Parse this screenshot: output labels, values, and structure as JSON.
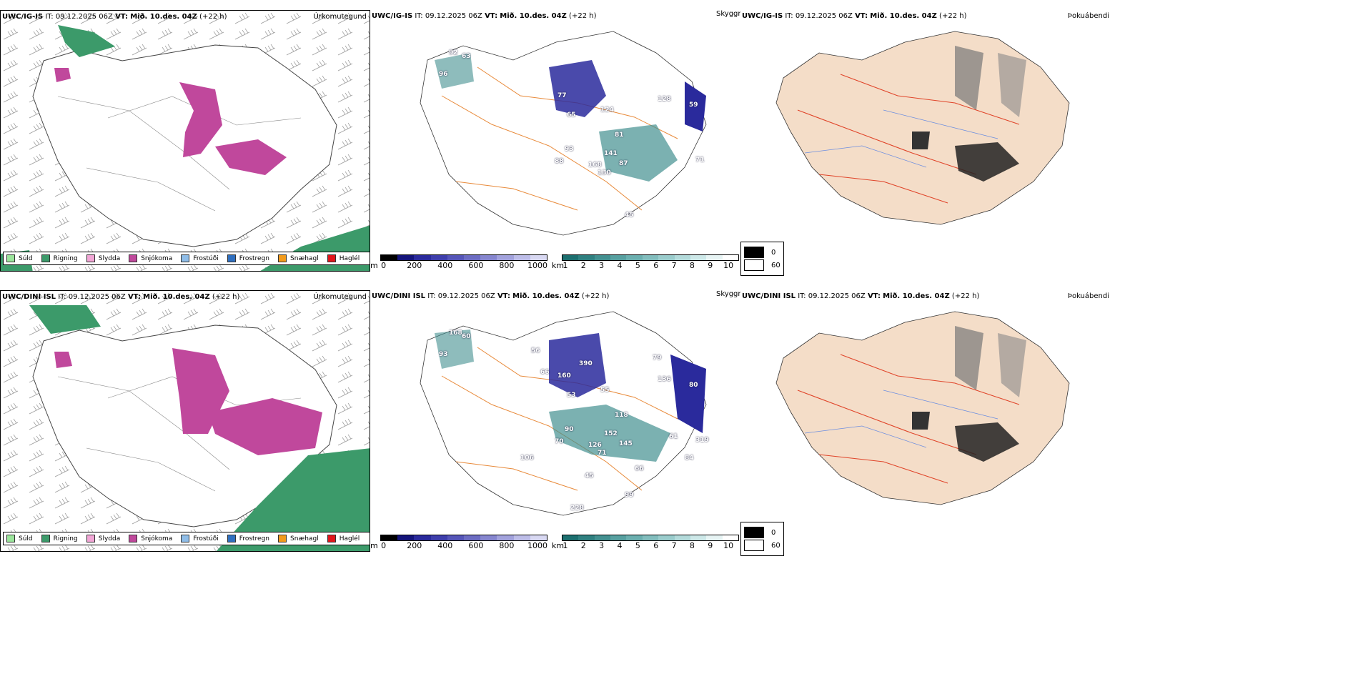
{
  "panels_top": {
    "model": "UWC/IG-IS",
    "it_label": "IT:",
    "it_value": "09.12.2025 06Z",
    "vt_label": "VT:",
    "vt_value": "Mið. 10.des. 04Z",
    "lead": "(+22 h)"
  },
  "panels_bottom": {
    "model": "UWC/DINI ISL",
    "it_label": "IT:",
    "it_value": "09.12.2025 06Z",
    "vt_label": "VT:",
    "vt_value": "Mið. 10.des. 04Z",
    "lead": "(+22 h)"
  },
  "titles": {
    "precip": "Úrkomutegund",
    "visibility": "Skyggni",
    "fog": "Þokuábendi"
  },
  "precip_legend": [
    {
      "label": "Súld",
      "color": "#9be59b"
    },
    {
      "label": "Rigning",
      "color": "#3c9a6a"
    },
    {
      "label": "Slydda",
      "color": "#f2a6d6"
    },
    {
      "label": "Snjókoma",
      "color": "#c0489c"
    },
    {
      "label": "Frostúði",
      "color": "#8fbde8"
    },
    {
      "label": "Frostregn",
      "color": "#2f6fbf"
    },
    {
      "label": "Snæhagl",
      "color": "#f39b1c"
    },
    {
      "label": "Haglél",
      "color": "#e2151b"
    }
  ],
  "cbar_m": {
    "unit": "m",
    "ticks": [
      "0",
      "200",
      "400",
      "600",
      "800",
      "1000"
    ],
    "colors": [
      "#000000",
      "#14147a",
      "#2a2a9c",
      "#3e3eab",
      "#5555b8",
      "#6c6cc2",
      "#8686cf",
      "#a2a2dc",
      "#bdbde8",
      "#d8d8f2"
    ]
  },
  "cbar_km": {
    "unit": "km",
    "ticks": [
      "1",
      "2",
      "3",
      "4",
      "5",
      "6",
      "7",
      "8",
      "9",
      "10"
    ],
    "colors": [
      "#1c6f6f",
      "#2f8080",
      "#439090",
      "#57a0a0",
      "#6bafaf",
      "#82bdbd",
      "#9acccc",
      "#b3dada",
      "#cde8e8",
      "#e7f4f4",
      "#ffffff"
    ]
  },
  "cloud_legend": {
    "values": [
      "0",
      "60"
    ]
  },
  "vis_labels_top": [
    "92",
    "63",
    "96",
    "77",
    "65",
    "124",
    "93",
    "88",
    "168",
    "130",
    "87",
    "128",
    "59",
    "71",
    "45",
    "81",
    "141"
  ],
  "vis_labels_bottom": [
    "168",
    "60",
    "93",
    "160",
    "53",
    "55",
    "90",
    "70",
    "126",
    "71",
    "145",
    "136",
    "80",
    "319",
    "99",
    "118",
    "152",
    "56",
    "66",
    "390",
    "79",
    "61",
    "84",
    "45",
    "228",
    "106",
    "66"
  ]
}
